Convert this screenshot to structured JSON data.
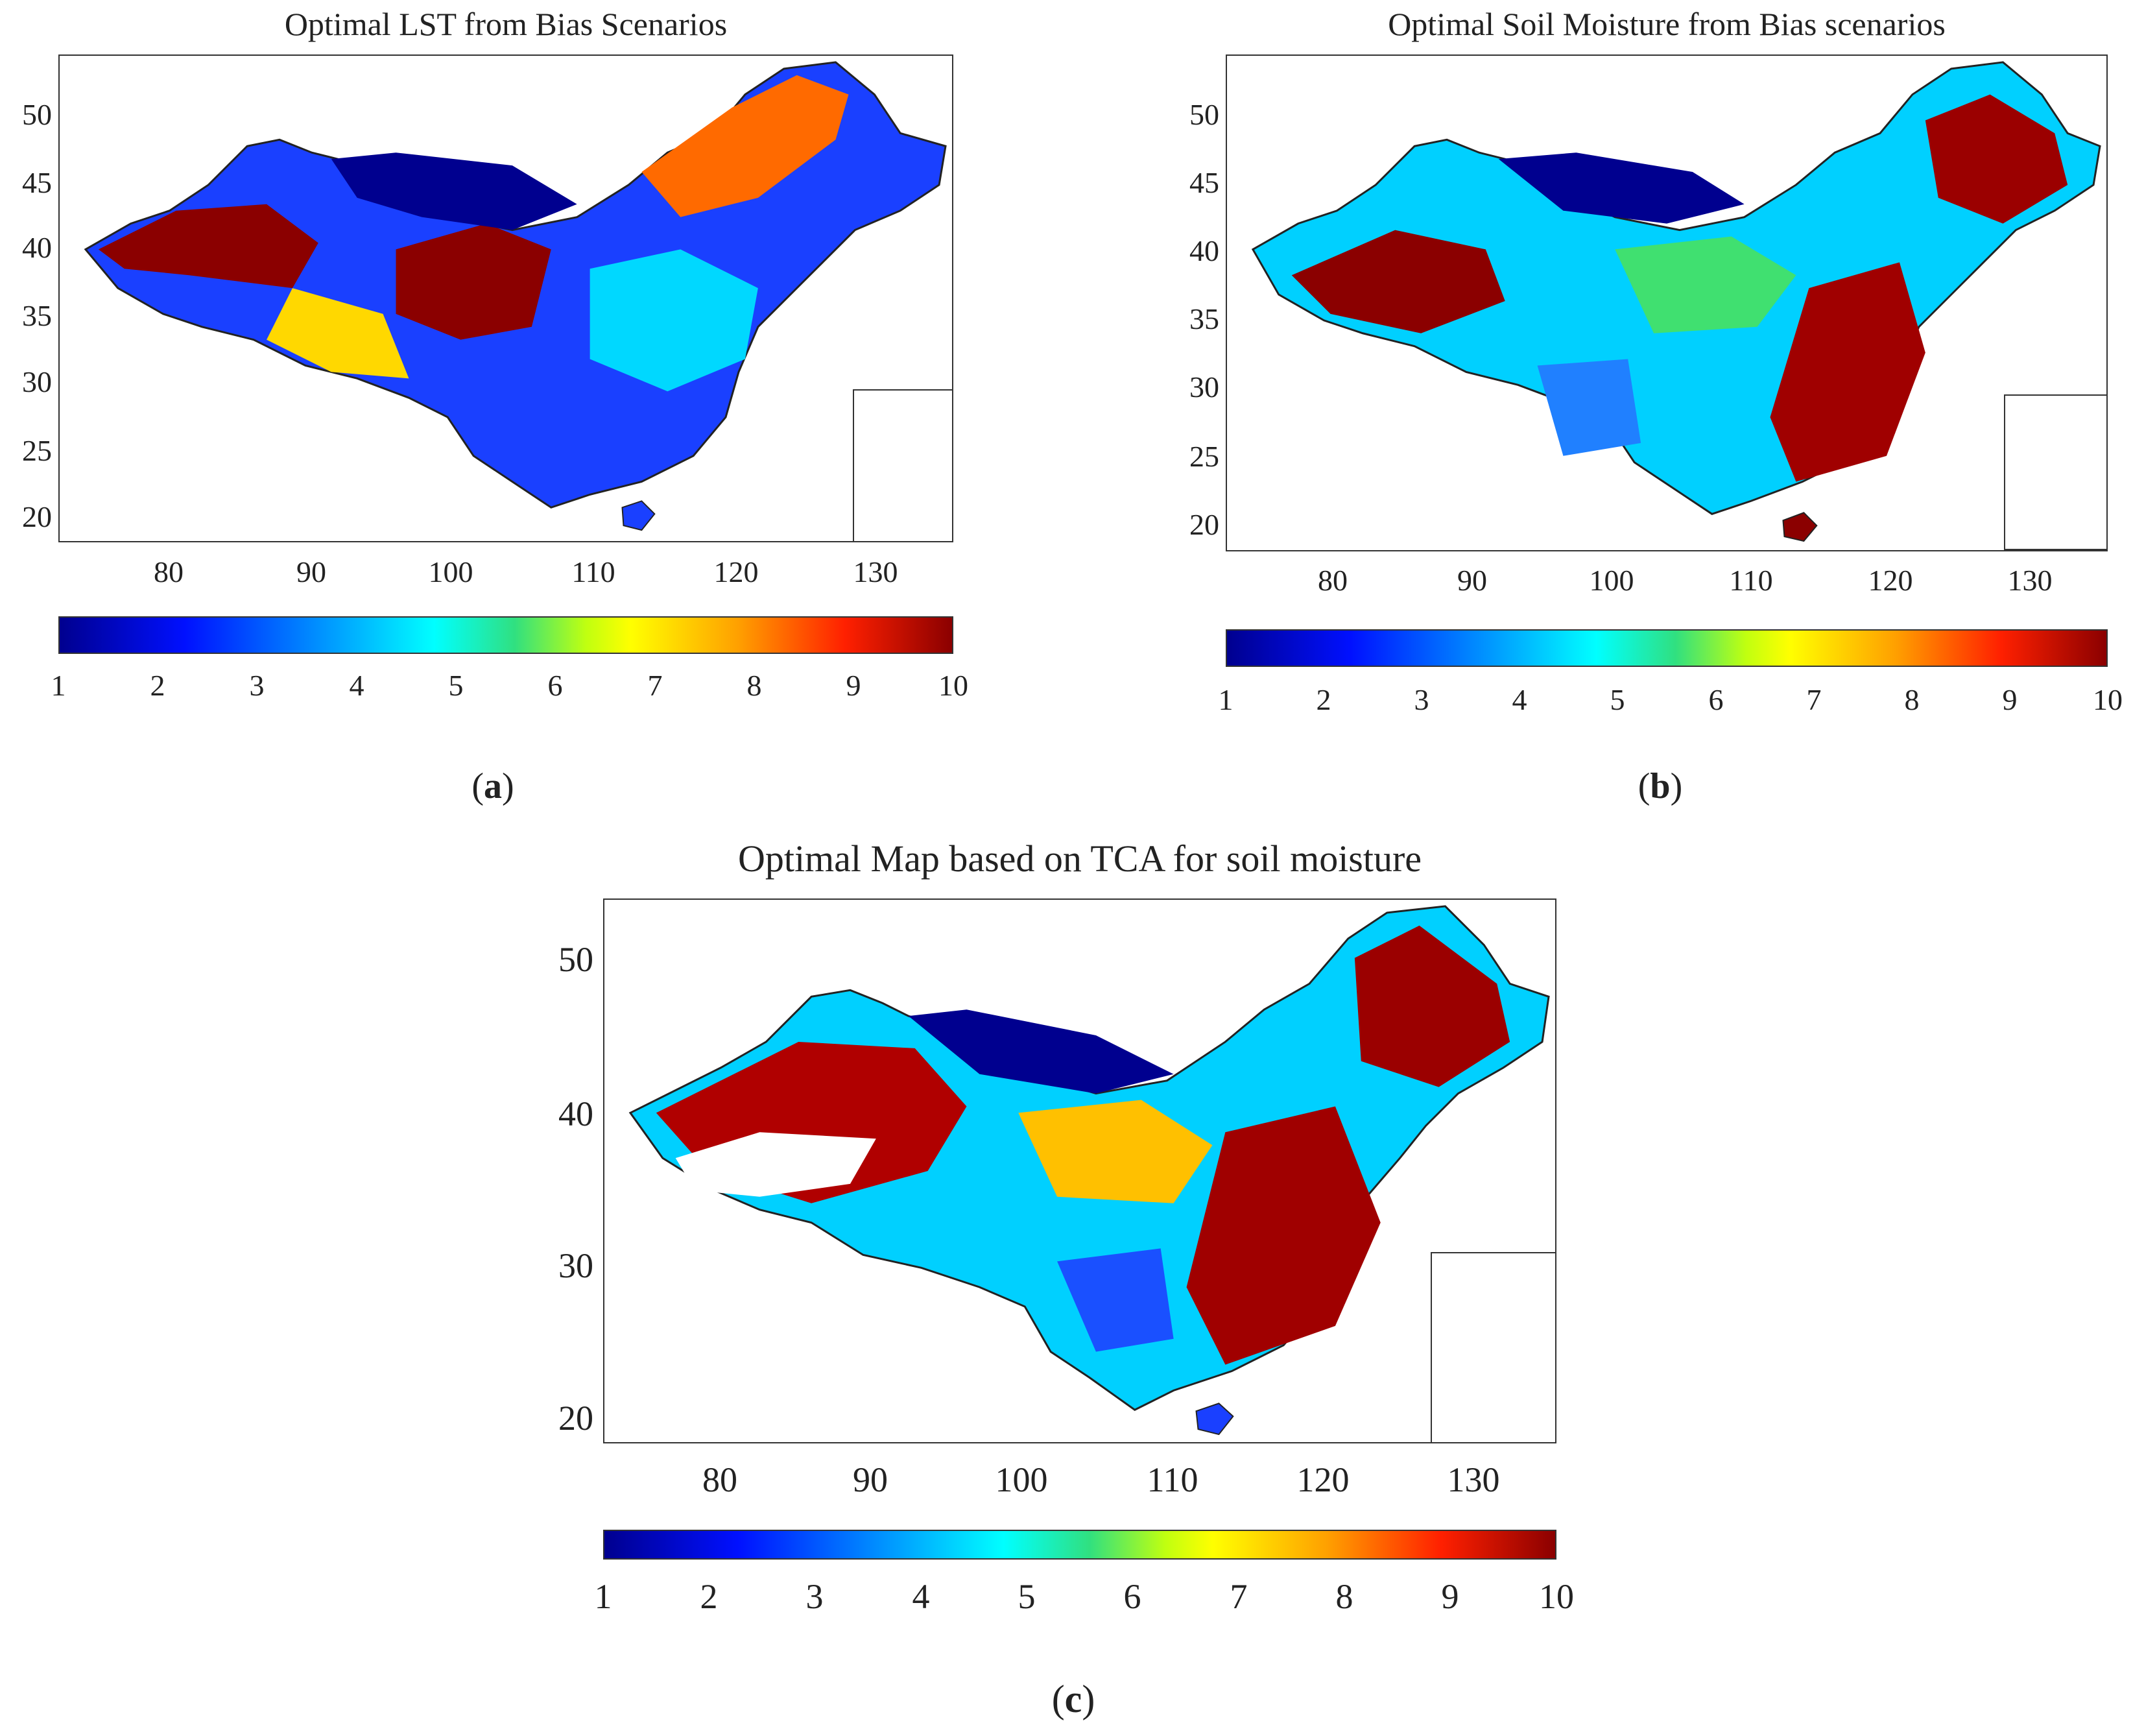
{
  "panels": [
    {
      "title": "Optimal LST from Bias Scenarios",
      "label_open": "(",
      "label_letter": "a",
      "label_close": ")"
    },
    {
      "title": "Optimal Soil Moisture from Bias scenarios",
      "label_open": "(",
      "label_letter": "b",
      "label_close": ")"
    },
    {
      "title": "Optimal Map based on TCA for soil moisture",
      "label_open": "(",
      "label_letter": "c",
      "label_close": ")"
    }
  ],
  "axes": {
    "lat_ticks_ab": [
      "50",
      "45",
      "40",
      "35",
      "30",
      "25",
      "20"
    ],
    "lat_ticks_c": [
      "50",
      "40",
      "30",
      "20"
    ],
    "lon_ticks": [
      "80",
      "90",
      "100",
      "110",
      "120",
      "130"
    ]
  },
  "colorbar": {
    "ticks": [
      "1",
      "2",
      "3",
      "4",
      "5",
      "6",
      "7",
      "8",
      "9",
      "10"
    ],
    "colors": [
      "#00008f",
      "#0010ff",
      "#0090ff",
      "#00ffff",
      "#30e080",
      "#c0ff10",
      "#ffff00",
      "#ffa000",
      "#ff2000",
      "#8b0000"
    ]
  }
}
